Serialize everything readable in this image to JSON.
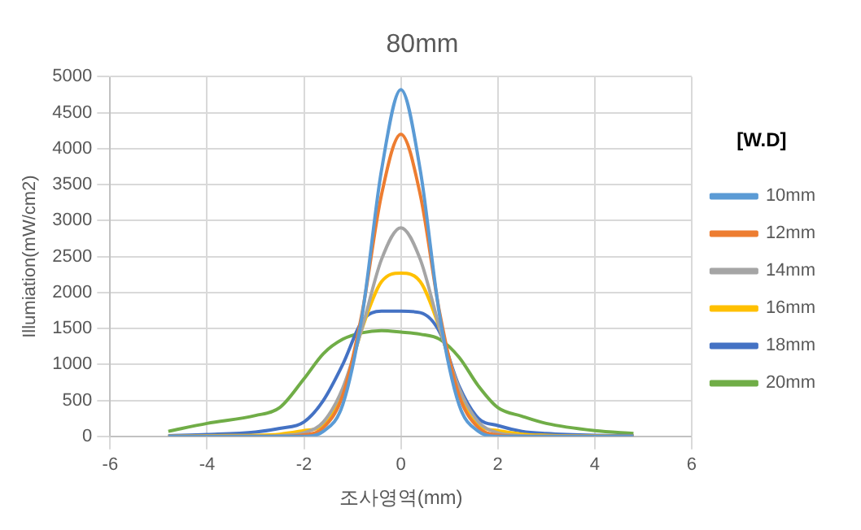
{
  "chart_data": {
    "type": "line",
    "title": "80mm",
    "xlabel": "조사영역(mm)",
    "ylabel": "Illumiation(mW/cm2)",
    "legend_title": "[W.D]",
    "legend": "right",
    "grid": true,
    "marker": "none",
    "line_style": "solid",
    "x": [
      -4.8,
      -4,
      -3,
      -2.5,
      -2,
      -1.6,
      -1.2,
      -0.8,
      -0.4,
      0,
      0.4,
      0.8,
      1.2,
      1.6,
      2,
      2.5,
      3,
      4,
      4.8
    ],
    "xlim": [
      -6,
      6
    ],
    "xticks": [
      -6,
      -4,
      -2,
      0,
      2,
      4,
      6
    ],
    "ylim": [
      0,
      5000
    ],
    "yticks": [
      0,
      500,
      1000,
      1500,
      2000,
      2500,
      3000,
      3500,
      4000,
      4500,
      5000
    ],
    "series": [
      {
        "name": "10mm",
        "color": "#5b9bd5",
        "values": [
          0,
          0,
          0,
          0,
          0,
          70,
          440,
          1680,
          3700,
          4820,
          3700,
          1680,
          440,
          70,
          0,
          0,
          0,
          0,
          0
        ]
      },
      {
        "name": "12mm",
        "color": "#ed7d31",
        "values": [
          0,
          0,
          0,
          0,
          20,
          120,
          570,
          1720,
          3360,
          4200,
          3360,
          1720,
          570,
          120,
          20,
          0,
          0,
          0,
          0
        ]
      },
      {
        "name": "14mm",
        "color": "#a5a5a5",
        "values": [
          0,
          0,
          0,
          10,
          50,
          200,
          670,
          1510,
          2460,
          2900,
          2460,
          1510,
          670,
          200,
          50,
          10,
          0,
          0,
          0
        ]
      },
      {
        "name": "16mm",
        "color": "#ffc000",
        "values": [
          0,
          10,
          15,
          30,
          80,
          150,
          600,
          1500,
          2150,
          2270,
          2150,
          1500,
          600,
          150,
          80,
          30,
          15,
          5,
          0
        ]
      },
      {
        "name": "18mm",
        "color": "#4472c4",
        "values": [
          10,
          25,
          60,
          110,
          200,
          500,
          1000,
          1600,
          1740,
          1740,
          1720,
          1450,
          700,
          250,
          150,
          70,
          40,
          15,
          10
        ]
      },
      {
        "name": "20mm",
        "color": "#70ad47",
        "values": [
          70,
          180,
          290,
          400,
          800,
          1150,
          1350,
          1440,
          1470,
          1450,
          1420,
          1350,
          1100,
          700,
          400,
          280,
          180,
          80,
          40
        ]
      }
    ]
  }
}
